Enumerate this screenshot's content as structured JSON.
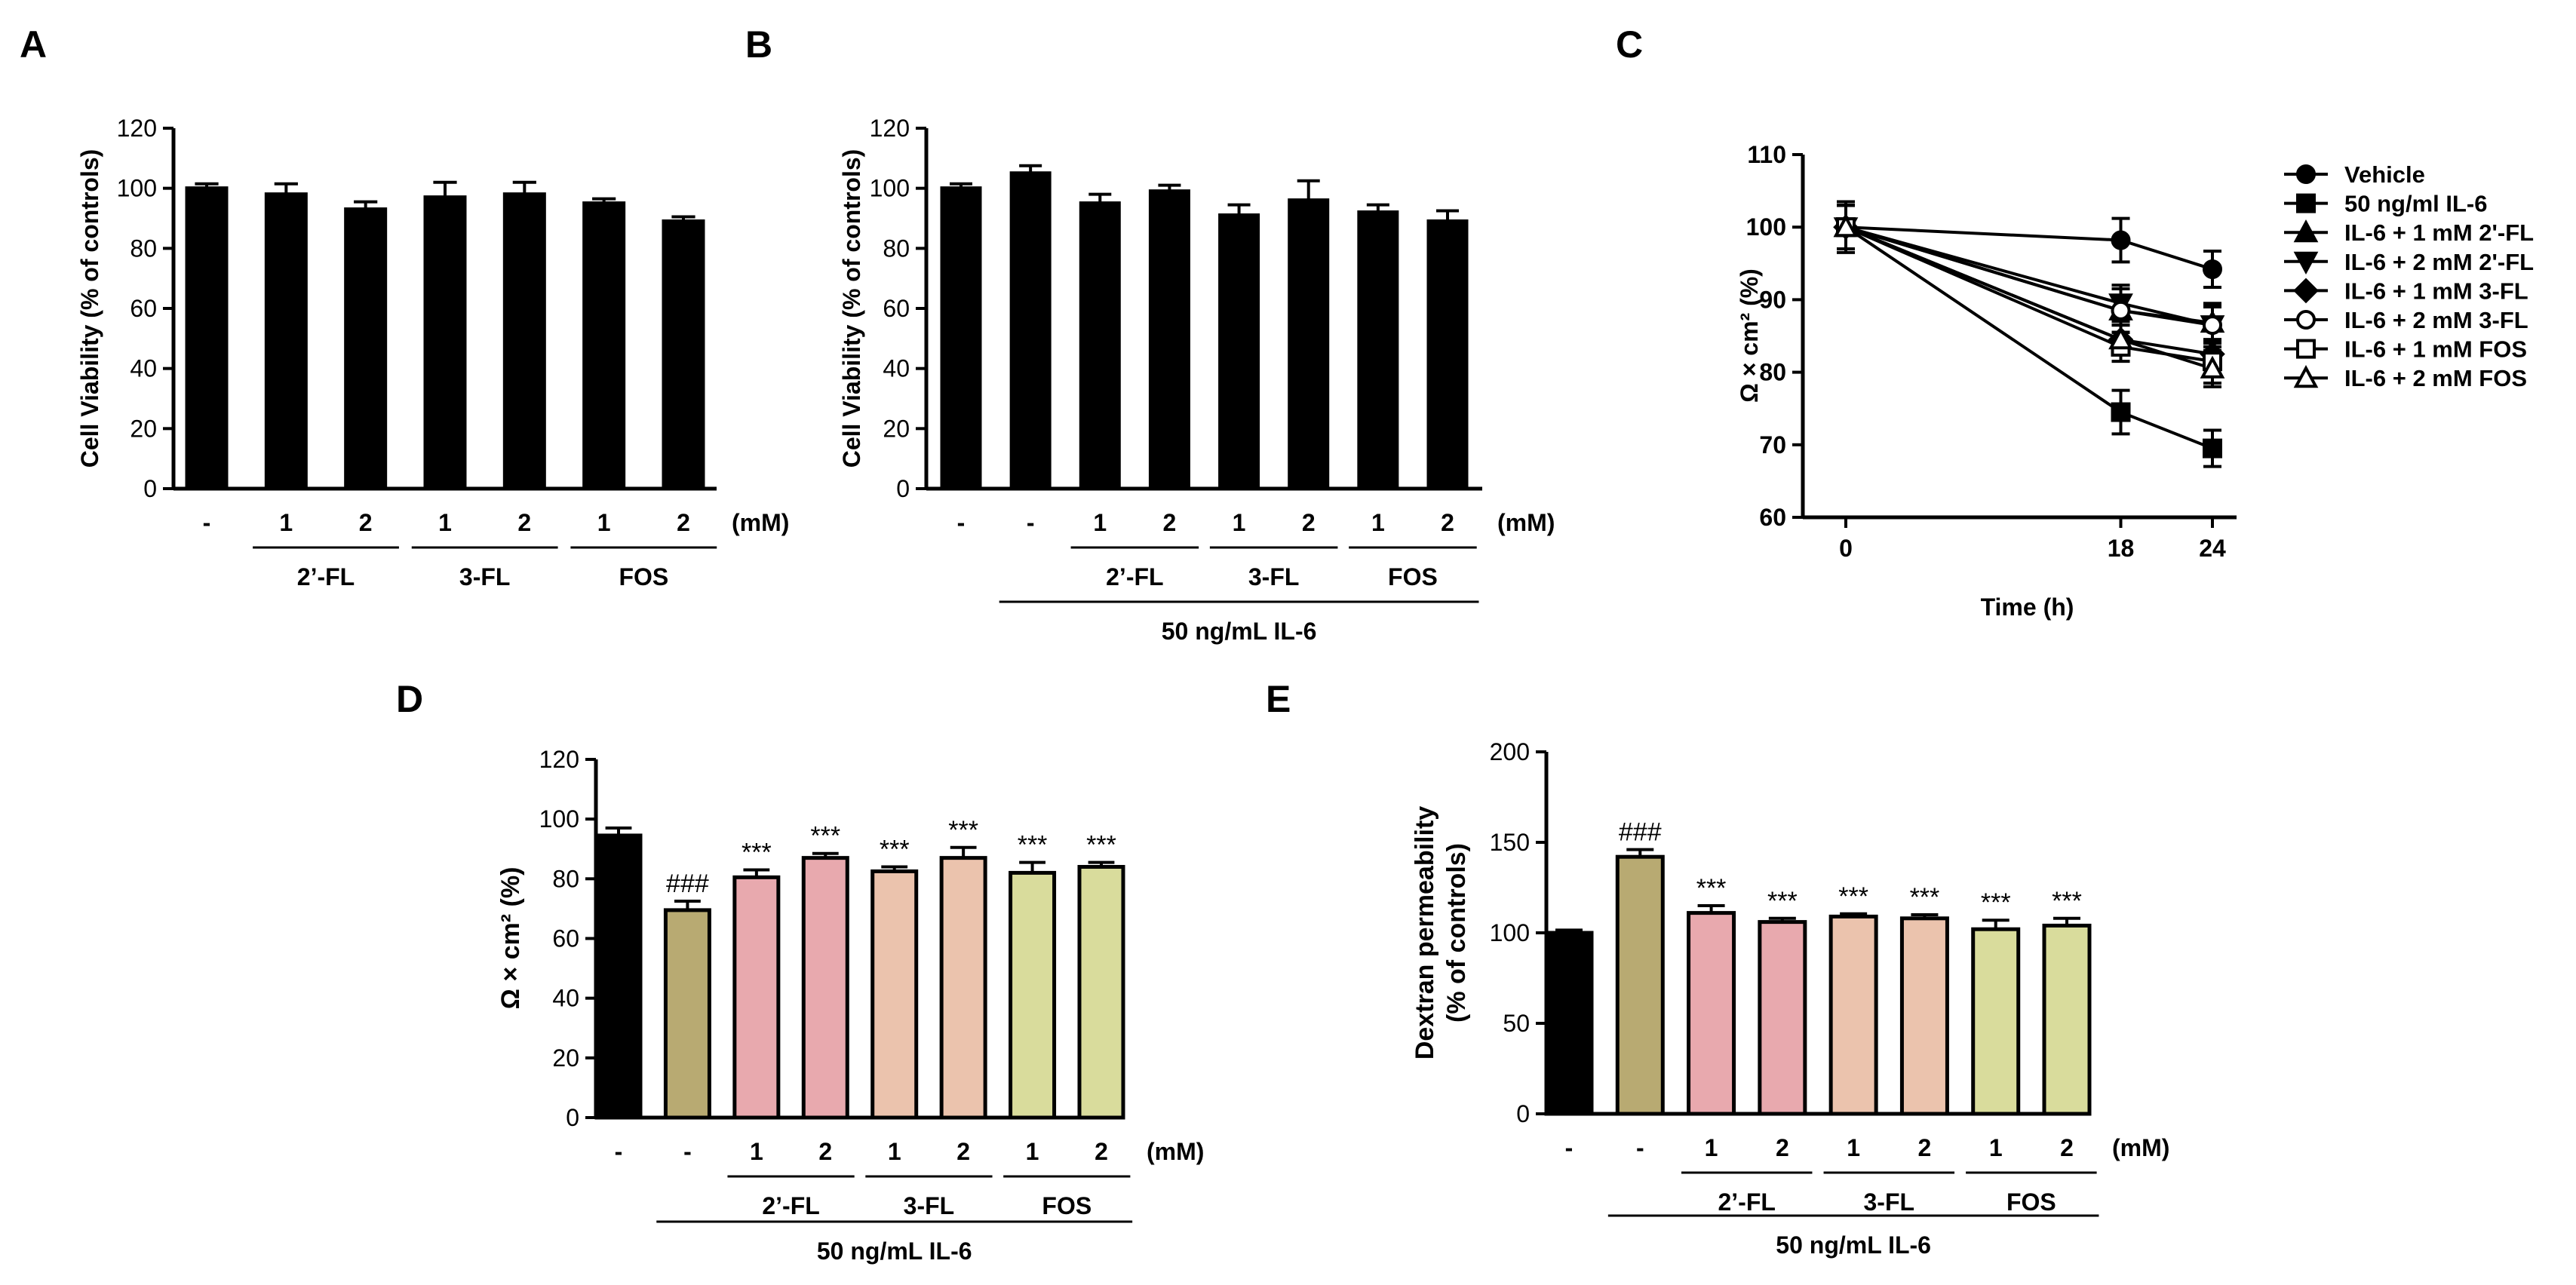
{
  "chart_data": [
    {
      "panel": "A",
      "type": "bar",
      "ylabel": "Cell Viability (% of controls)",
      "ylim": [
        0,
        120
      ],
      "yticks": [
        "0",
        "20",
        "40",
        "60",
        "80",
        "100",
        "120"
      ],
      "categories": [
        "-",
        "1",
        "2",
        "1",
        "2",
        "1",
        "2"
      ],
      "unit_label": "(mM)",
      "values": [
        100,
        98,
        93,
        97,
        98,
        95,
        89
      ],
      "errors": [
        1.5,
        3.5,
        2.5,
        5,
        4,
        1.5,
        1.5
      ],
      "colors": [
        "#000000",
        "#000000",
        "#000000",
        "#000000",
        "#000000",
        "#000000",
        "#000000"
      ],
      "groups": [
        {
          "label": "2’-FL",
          "from": 1,
          "to": 2
        },
        {
          "label": "3-FL",
          "from": 3,
          "to": 4
        },
        {
          "label": "FOS",
          "from": 5,
          "to": 6
        }
      ]
    },
    {
      "panel": "B",
      "type": "bar",
      "ylabel": "Cell Viability (% of controls)",
      "ylim": [
        0,
        120
      ],
      "yticks": [
        "0",
        "20",
        "40",
        "60",
        "80",
        "100",
        "120"
      ],
      "categories": [
        "-",
        "-",
        "1",
        "2",
        "1",
        "2",
        "1",
        "2"
      ],
      "unit_label": "(mM)",
      "values": [
        100,
        105,
        95,
        99,
        91,
        96,
        92,
        89
      ],
      "errors": [
        1.5,
        2.5,
        3,
        2,
        3.5,
        6.5,
        2.5,
        3.5
      ],
      "colors": [
        "#000000",
        "#000000",
        "#000000",
        "#000000",
        "#000000",
        "#000000",
        "#000000",
        "#000000"
      ],
      "groups": [
        {
          "label": "2’-FL",
          "from": 2,
          "to": 3
        },
        {
          "label": "3-FL",
          "from": 4,
          "to": 5
        },
        {
          "label": "FOS",
          "from": 6,
          "to": 7
        }
      ],
      "supergroup": {
        "label": "50 ng/mL IL-6",
        "from": 1,
        "to": 7
      }
    },
    {
      "panel": "C",
      "type": "line",
      "xlabel": "Time (h)",
      "ylabel": "Ω × cm² (%)",
      "x": [
        0,
        18,
        24
      ],
      "xticks": [
        "0",
        "18",
        "24"
      ],
      "ylim": [
        60,
        110
      ],
      "yticks": [
        "60",
        "70",
        "80",
        "90",
        "100",
        "110"
      ],
      "series": [
        {
          "name": "Vehicle",
          "marker": "circle",
          "values": [
            100,
            98.2,
            94.2
          ],
          "errors": [
            3.5,
            3,
            2.5
          ]
        },
        {
          "name": "50 ng/ml IL-6",
          "marker": "square",
          "values": [
            100,
            74.5,
            69.5
          ],
          "errors": [
            3,
            3,
            2.5
          ]
        },
        {
          "name": "IL-6 + 1 mM 2'-FL",
          "marker": "triangle-up",
          "values": [
            100,
            88.5,
            86.8
          ],
          "errors": [
            3,
            3,
            2.5
          ]
        },
        {
          "name": "IL-6 + 2 mM 2'-FL",
          "marker": "triangle-down",
          "values": [
            100,
            89.5,
            86.5
          ],
          "errors": [
            3,
            2.5,
            2.5
          ]
        },
        {
          "name": "IL-6 + 1 mM 3-FL",
          "marker": "diamond",
          "values": [
            100,
            84.5,
            82.5
          ],
          "errors": [
            3,
            2,
            2
          ]
        },
        {
          "name": "IL-6 + 2 mM 3-FL",
          "marker": "circle-open",
          "values": [
            100,
            88.5,
            86.5
          ],
          "errors": [
            3,
            3,
            3
          ]
        },
        {
          "name": "IL-6 + 1 mM FOS",
          "marker": "square-open",
          "values": [
            100,
            83.5,
            81.5
          ],
          "errors": [
            3,
            2,
            3
          ]
        },
        {
          "name": "IL-6 + 2 mM FOS",
          "marker": "triangle-open",
          "values": [
            100,
            84.5,
            80.5
          ],
          "errors": [
            3,
            2,
            2.5
          ]
        }
      ]
    },
    {
      "panel": "D",
      "type": "bar",
      "ylabel": "Ω × cm² (%)",
      "ylim": [
        0,
        120
      ],
      "yticks": [
        "0",
        "20",
        "40",
        "60",
        "80",
        "100",
        "120"
      ],
      "categories": [
        "-",
        "-",
        "1",
        "2",
        "1",
        "2",
        "1",
        "2"
      ],
      "unit_label": "(mM)",
      "values": [
        94.5,
        69.5,
        80.5,
        87,
        82.5,
        87,
        82,
        84
      ],
      "errors": [
        2.5,
        3,
        2.5,
        1.5,
        1.5,
        3.5,
        3.5,
        1.5
      ],
      "colors": [
        "#000000",
        "#b8aa72",
        "#e8a9ae",
        "#e8a9ae",
        "#ebc3ad",
        "#ebc3ad",
        "#d9dc9c",
        "#d9dc9c"
      ],
      "annotations": [
        "",
        "###",
        "***",
        "***",
        "***",
        "***",
        "***",
        "***"
      ],
      "groups": [
        {
          "label": "2’-FL",
          "from": 2,
          "to": 3
        },
        {
          "label": "3-FL",
          "from": 4,
          "to": 5
        },
        {
          "label": "FOS",
          "from": 6,
          "to": 7
        }
      ],
      "supergroup": {
        "label": "50 ng/mL IL-6",
        "from": 1,
        "to": 7
      }
    },
    {
      "panel": "E",
      "type": "bar",
      "ylabel": "Dextran permeability",
      "ylabel2": "(% of controls)",
      "ylim": [
        0,
        200
      ],
      "yticks": [
        "0",
        "50",
        "100",
        "150",
        "200"
      ],
      "categories": [
        "-",
        "-",
        "1",
        "2",
        "1",
        "2",
        "1",
        "2"
      ],
      "unit_label": "(mM)",
      "values": [
        100,
        142,
        111,
        106,
        109,
        108,
        102,
        104
      ],
      "errors": [
        1.5,
        4,
        4,
        2,
        1.5,
        2,
        5,
        4
      ],
      "colors": [
        "#000000",
        "#b8aa72",
        "#e8a9ae",
        "#e8a9ae",
        "#ebc3ad",
        "#ebc3ad",
        "#d9dc9c",
        "#d9dc9c"
      ],
      "annotations": [
        "",
        "###",
        "***",
        "***",
        "***",
        "***",
        "***",
        "***"
      ],
      "groups": [
        {
          "label": "2’-FL",
          "from": 2,
          "to": 3
        },
        {
          "label": "3-FL",
          "from": 4,
          "to": 5
        },
        {
          "label": "FOS",
          "from": 6,
          "to": 7
        }
      ],
      "supergroup": {
        "label": "50 ng/mL IL-6",
        "from": 1,
        "to": 7
      }
    }
  ]
}
